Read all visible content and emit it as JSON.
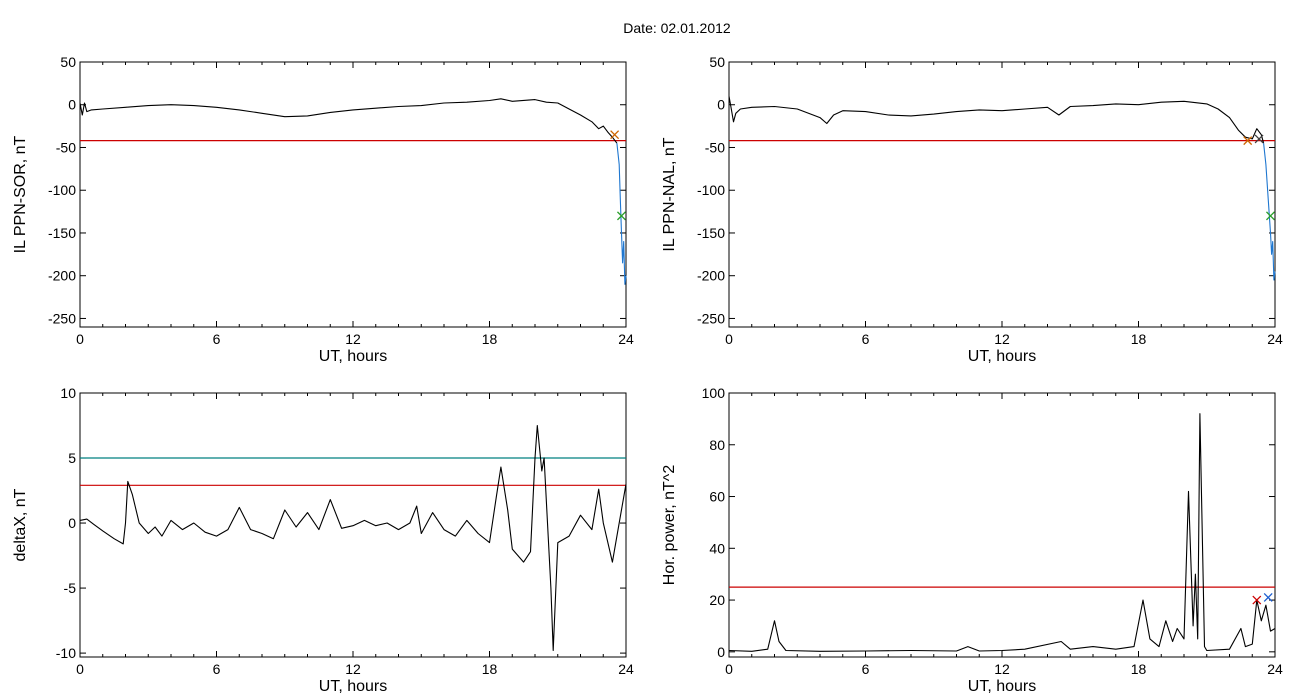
{
  "figure": {
    "date_label": "Date:  02.01.2012"
  },
  "chart_data": [
    {
      "type": "line",
      "ylabel": "IL PPN-SOR, nT",
      "xlabel": "UT, hours",
      "xlim": [
        0,
        24
      ],
      "ylim": [
        -260,
        50
      ],
      "xticks": [
        0,
        6,
        12,
        18,
        24
      ],
      "yticks": [
        50,
        0,
        -50,
        -100,
        -150,
        -200,
        -250
      ],
      "threshold": {
        "value": -42,
        "color": "#cc0000"
      },
      "series": [
        {
          "color": "#000000",
          "points": [
            [
              0,
              2
            ],
            [
              0.1,
              -12
            ],
            [
              0.2,
              2
            ],
            [
              0.3,
              -8
            ],
            [
              0.5,
              -6
            ],
            [
              1,
              -5
            ],
            [
              2,
              -3
            ],
            [
              3,
              -1
            ],
            [
              4,
              0
            ],
            [
              5,
              -1
            ],
            [
              6,
              -3
            ],
            [
              7,
              -6
            ],
            [
              8,
              -10
            ],
            [
              9,
              -14
            ],
            [
              10,
              -13
            ],
            [
              11,
              -9
            ],
            [
              12,
              -6
            ],
            [
              13,
              -4
            ],
            [
              14,
              -2
            ],
            [
              15,
              -1
            ],
            [
              16,
              2
            ],
            [
              17,
              3
            ],
            [
              18,
              5
            ],
            [
              18.5,
              7
            ],
            [
              19,
              4
            ],
            [
              20,
              6
            ],
            [
              20.5,
              3
            ],
            [
              21,
              2
            ],
            [
              21.5,
              -5
            ],
            [
              22,
              -12
            ],
            [
              22.5,
              -20
            ],
            [
              22.8,
              -28
            ],
            [
              23,
              -25
            ],
            [
              23.2,
              -32
            ],
            [
              23.4,
              -38
            ],
            [
              23.6,
              -45
            ]
          ]
        },
        {
          "color": "#1f77d0",
          "points": [
            [
              23.6,
              -45
            ],
            [
              23.7,
              -70
            ],
            [
              23.75,
              -110
            ],
            [
              23.8,
              -150
            ],
            [
              23.85,
              -185
            ],
            [
              23.9,
              -160
            ],
            [
              23.95,
              -210
            ],
            [
              24,
              -200
            ]
          ]
        }
      ],
      "markers": [
        {
          "x": 23.5,
          "y": -35,
          "color": "#cc6600"
        },
        {
          "x": 23.8,
          "y": -130,
          "color": "#2ca02c"
        }
      ]
    },
    {
      "type": "line",
      "ylabel": "IL PPN-NAL, nT",
      "xlabel": "UT, hours",
      "xlim": [
        0,
        24
      ],
      "ylim": [
        -260,
        50
      ],
      "xticks": [
        0,
        6,
        12,
        18,
        24
      ],
      "yticks": [
        50,
        0,
        -50,
        -100,
        -150,
        -200,
        -250
      ],
      "threshold": {
        "value": -42,
        "color": "#cc0000"
      },
      "series": [
        {
          "color": "#000000",
          "points": [
            [
              0,
              10
            ],
            [
              0.1,
              -5
            ],
            [
              0.2,
              -20
            ],
            [
              0.3,
              -10
            ],
            [
              0.5,
              -5
            ],
            [
              1,
              -3
            ],
            [
              2,
              -2
            ],
            [
              3,
              -5
            ],
            [
              4,
              -15
            ],
            [
              4.3,
              -22
            ],
            [
              4.6,
              -12
            ],
            [
              5,
              -7
            ],
            [
              6,
              -8
            ],
            [
              7,
              -12
            ],
            [
              8,
              -13
            ],
            [
              9,
              -11
            ],
            [
              10,
              -8
            ],
            [
              11,
              -6
            ],
            [
              12,
              -7
            ],
            [
              13,
              -5
            ],
            [
              14,
              -3
            ],
            [
              14.5,
              -12
            ],
            [
              15,
              -2
            ],
            [
              16,
              -1
            ],
            [
              17,
              1
            ],
            [
              18,
              0
            ],
            [
              19,
              3
            ],
            [
              20,
              4
            ],
            [
              21,
              1
            ],
            [
              21.5,
              -5
            ],
            [
              22,
              -15
            ],
            [
              22.4,
              -30
            ],
            [
              22.7,
              -38
            ],
            [
              23,
              -40
            ],
            [
              23.2,
              -28
            ],
            [
              23.4,
              -35
            ],
            [
              23.5,
              -45
            ]
          ]
        },
        {
          "color": "#1f77d0",
          "points": [
            [
              23.5,
              -45
            ],
            [
              23.6,
              -70
            ],
            [
              23.7,
              -110
            ],
            [
              23.8,
              -150
            ],
            [
              23.85,
              -175
            ],
            [
              23.9,
              -160
            ],
            [
              23.95,
              -205
            ],
            [
              24,
              -195
            ]
          ]
        }
      ],
      "markers": [
        {
          "x": 22.8,
          "y": -42,
          "color": "#cc6600"
        },
        {
          "x": 23.3,
          "y": -40,
          "color": "#404040"
        },
        {
          "x": 23.8,
          "y": -130,
          "color": "#2ca02c"
        }
      ]
    },
    {
      "type": "line",
      "ylabel": "deltaX, nT",
      "xlabel": "UT, hours",
      "xlim": [
        0,
        24
      ],
      "ylim": [
        -10.3,
        10
      ],
      "xticks": [
        0,
        6,
        12,
        18,
        24
      ],
      "yticks": [
        10,
        5,
        0,
        -5,
        -10
      ],
      "threshold": {
        "value": 2.9,
        "color": "#cc0000"
      },
      "threshold2": {
        "value": 5,
        "color": "#008080"
      },
      "series": [
        {
          "color": "#000000",
          "points": [
            [
              0,
              0.2
            ],
            [
              0.3,
              0.3
            ],
            [
              0.6,
              -0.1
            ],
            [
              1,
              -0.6
            ],
            [
              1.5,
              -1.2
            ],
            [
              1.9,
              -1.6
            ],
            [
              2,
              0
            ],
            [
              2.1,
              3.2
            ],
            [
              2.3,
              2.2
            ],
            [
              2.6,
              0
            ],
            [
              3,
              -0.8
            ],
            [
              3.3,
              -0.3
            ],
            [
              3.6,
              -1
            ],
            [
              4,
              0.2
            ],
            [
              4.5,
              -0.5
            ],
            [
              5,
              0
            ],
            [
              5.5,
              -0.7
            ],
            [
              6,
              -1
            ],
            [
              6.5,
              -0.5
            ],
            [
              7,
              1.2
            ],
            [
              7.5,
              -0.5
            ],
            [
              8,
              -0.8
            ],
            [
              8.5,
              -1.2
            ],
            [
              9,
              1
            ],
            [
              9.5,
              -0.3
            ],
            [
              10,
              0.8
            ],
            [
              10.5,
              -0.5
            ],
            [
              11,
              1.8
            ],
            [
              11.5,
              -0.4
            ],
            [
              12,
              -0.2
            ],
            [
              12.5,
              0.2
            ],
            [
              13,
              -0.2
            ],
            [
              13.5,
              0
            ],
            [
              14,
              -0.5
            ],
            [
              14.5,
              0
            ],
            [
              14.8,
              1.3
            ],
            [
              15,
              -0.8
            ],
            [
              15.5,
              0.8
            ],
            [
              16,
              -0.5
            ],
            [
              16.5,
              -1
            ],
            [
              17,
              0.2
            ],
            [
              17.5,
              -0.8
            ],
            [
              18,
              -1.5
            ],
            [
              18.3,
              2
            ],
            [
              18.5,
              4.3
            ],
            [
              18.8,
              1
            ],
            [
              19,
              -2
            ],
            [
              19.5,
              -3
            ],
            [
              19.8,
              -2.2
            ],
            [
              20,
              5
            ],
            [
              20.1,
              7.5
            ],
            [
              20.3,
              4
            ],
            [
              20.4,
              5
            ],
            [
              20.7,
              -5
            ],
            [
              20.8,
              -9.8
            ],
            [
              21,
              -1.5
            ],
            [
              21.5,
              -1
            ],
            [
              22,
              0.6
            ],
            [
              22.5,
              -0.5
            ],
            [
              22.8,
              2.6
            ],
            [
              23,
              0
            ],
            [
              23.4,
              -3
            ],
            [
              23.6,
              -1
            ],
            [
              24,
              3
            ]
          ]
        }
      ],
      "markers": []
    },
    {
      "type": "line",
      "ylabel": "Hor. power, nT^2",
      "xlabel": "UT, hours",
      "xlim": [
        0,
        24
      ],
      "ylim": [
        -2,
        100
      ],
      "xticks": [
        0,
        6,
        12,
        18,
        24
      ],
      "yticks": [
        100,
        80,
        60,
        40,
        20,
        0
      ],
      "threshold": {
        "value": 25,
        "color": "#cc0000"
      },
      "series": [
        {
          "color": "#000000",
          "points": [
            [
              0,
              0.5
            ],
            [
              1,
              0.2
            ],
            [
              1.7,
              1
            ],
            [
              2,
              12
            ],
            [
              2.2,
              4
            ],
            [
              2.5,
              0.5
            ],
            [
              4,
              0.2
            ],
            [
              6,
              0.3
            ],
            [
              8,
              0.5
            ],
            [
              10,
              0.3
            ],
            [
              10.5,
              2
            ],
            [
              11,
              0.3
            ],
            [
              12,
              0.5
            ],
            [
              13,
              1
            ],
            [
              14.6,
              4
            ],
            [
              15,
              1
            ],
            [
              16,
              2
            ],
            [
              17,
              1
            ],
            [
              17.8,
              2
            ],
            [
              18.2,
              20
            ],
            [
              18.5,
              5
            ],
            [
              18.9,
              2
            ],
            [
              19.2,
              12
            ],
            [
              19.5,
              4
            ],
            [
              19.7,
              9
            ],
            [
              20,
              5
            ],
            [
              20.2,
              62
            ],
            [
              20.4,
              10
            ],
            [
              20.5,
              30
            ],
            [
              20.6,
              5
            ],
            [
              20.7,
              92
            ],
            [
              20.9,
              2
            ],
            [
              21,
              0.5
            ],
            [
              22,
              1
            ],
            [
              22.5,
              9
            ],
            [
              22.7,
              2
            ],
            [
              23,
              3
            ],
            [
              23.2,
              20
            ],
            [
              23.4,
              12
            ],
            [
              23.6,
              18
            ],
            [
              23.8,
              8
            ],
            [
              24,
              9
            ]
          ]
        }
      ],
      "markers": [
        {
          "x": 23.2,
          "y": 20,
          "color": "#cc0000"
        },
        {
          "x": 23.7,
          "y": 21,
          "color": "#1f5fd0"
        }
      ]
    }
  ]
}
